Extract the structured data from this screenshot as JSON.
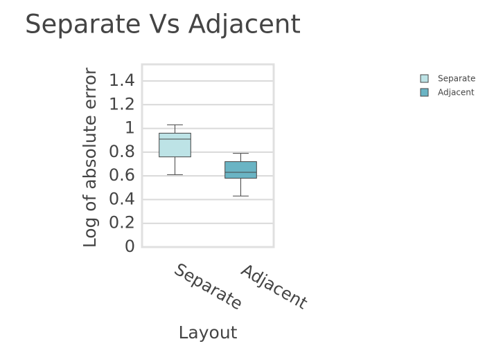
{
  "chart_data": {
    "type": "box",
    "title": "Separate Vs Adjacent",
    "x_label": "Layout",
    "y_label": "Log of absolute error",
    "categories": [
      "Separate",
      "Adjacent"
    ],
    "series": [
      {
        "name": "Separate",
        "color": "#bde3e6",
        "min": 0.61,
        "q1": 0.76,
        "median": 0.91,
        "q3": 0.96,
        "max": 1.03
      },
      {
        "name": "Adjacent",
        "color": "#6ab4c4",
        "min": 0.43,
        "q1": 0.58,
        "median": 0.63,
        "q3": 0.72,
        "max": 0.79
      }
    ],
    "ylim": [
      0,
      1.54
    ],
    "yticks": [
      0,
      0.2,
      0.4,
      0.6,
      0.8,
      1,
      1.2,
      1.4
    ],
    "grid": true,
    "legend": "top-right"
  }
}
